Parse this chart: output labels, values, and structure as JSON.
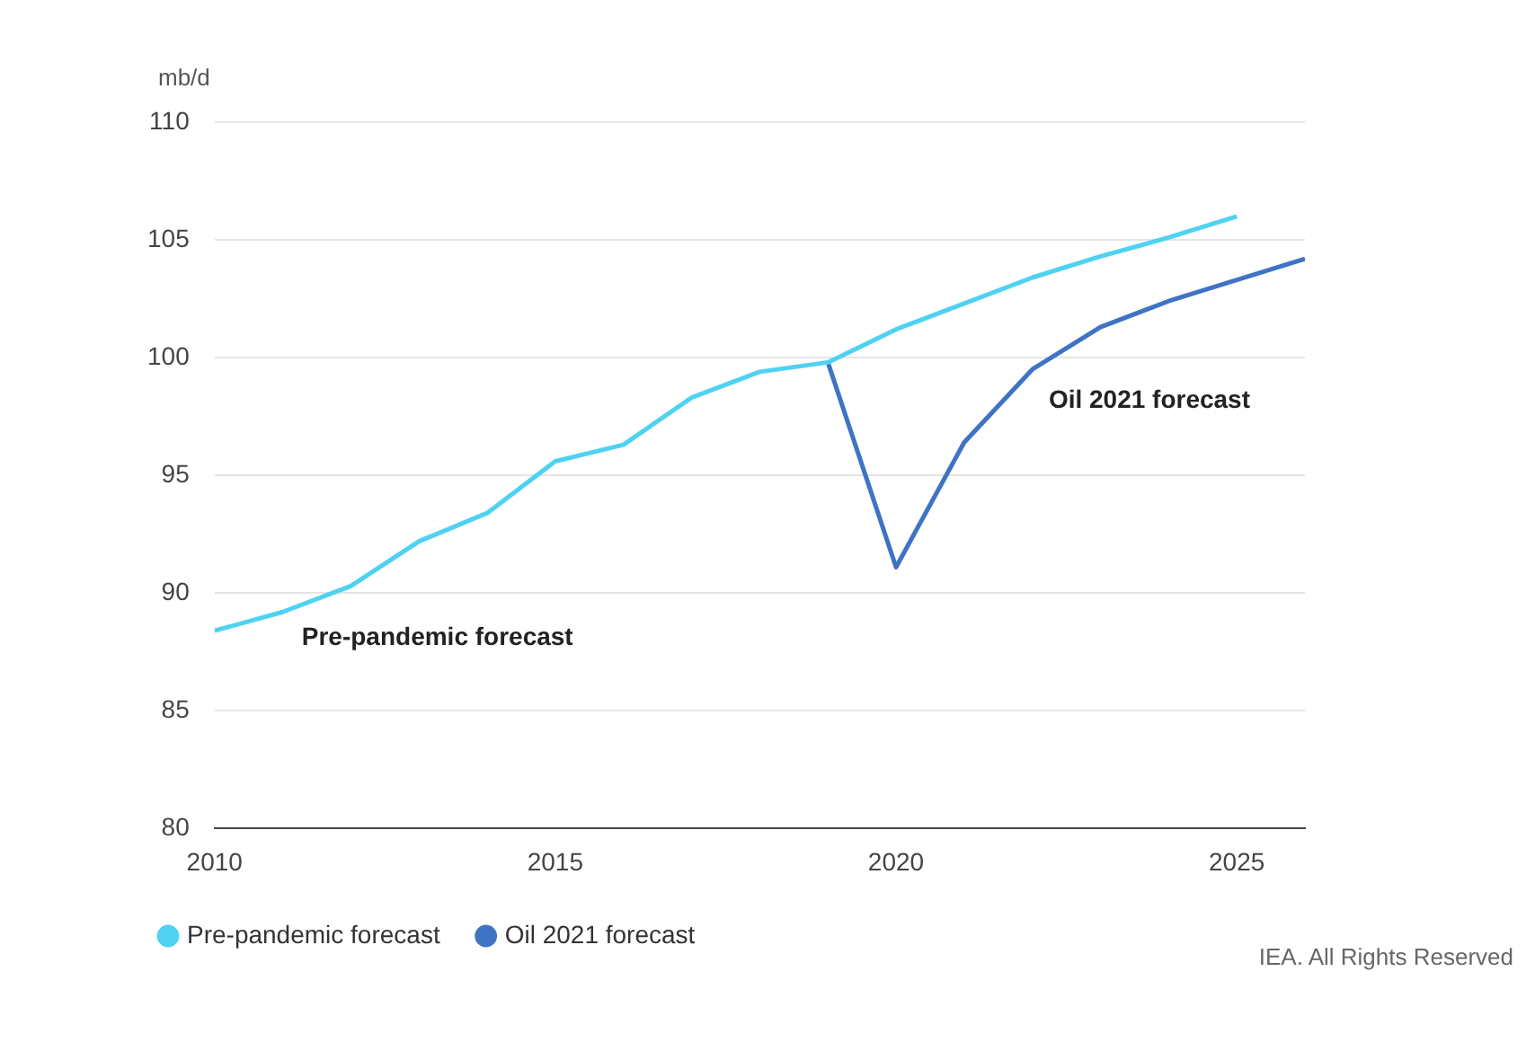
{
  "chart_data": {
    "type": "line",
    "ylabel": "mb/d",
    "xlim": [
      2010,
      2026
    ],
    "xticks": [
      2010,
      2015,
      2020,
      2025
    ],
    "ylim": [
      80,
      110
    ],
    "yticks": [
      80,
      85,
      90,
      95,
      100,
      105,
      110
    ],
    "grid": "y",
    "legend": "bottom",
    "marker": "none",
    "line_style": "solid",
    "series": [
      {
        "name": "Pre-pandemic forecast",
        "color": "#4fd2f2",
        "x": [
          2010,
          2011,
          2012,
          2013,
          2014,
          2015,
          2016,
          2017,
          2018,
          2019,
          2020,
          2021,
          2022,
          2023,
          2024,
          2025
        ],
        "values": [
          88.4,
          89.2,
          90.3,
          92.2,
          93.4,
          95.6,
          96.3,
          98.3,
          99.4,
          99.8,
          101.2,
          102.3,
          103.4,
          104.3,
          105.1,
          106.0
        ]
      },
      {
        "name": "Oil 2021 forecast",
        "color": "#3f73c4",
        "x": [
          2019,
          2020,
          2021,
          2022,
          2023,
          2024,
          2025,
          2026
        ],
        "values": [
          99.8,
          91.1,
          96.4,
          99.5,
          101.3,
          102.4,
          103.3,
          104.2
        ]
      }
    ],
    "annotations": [
      "Pre-pandemic forecast",
      "Oil 2021 forecast",
      "IEA. All Rights Reserved"
    ]
  }
}
